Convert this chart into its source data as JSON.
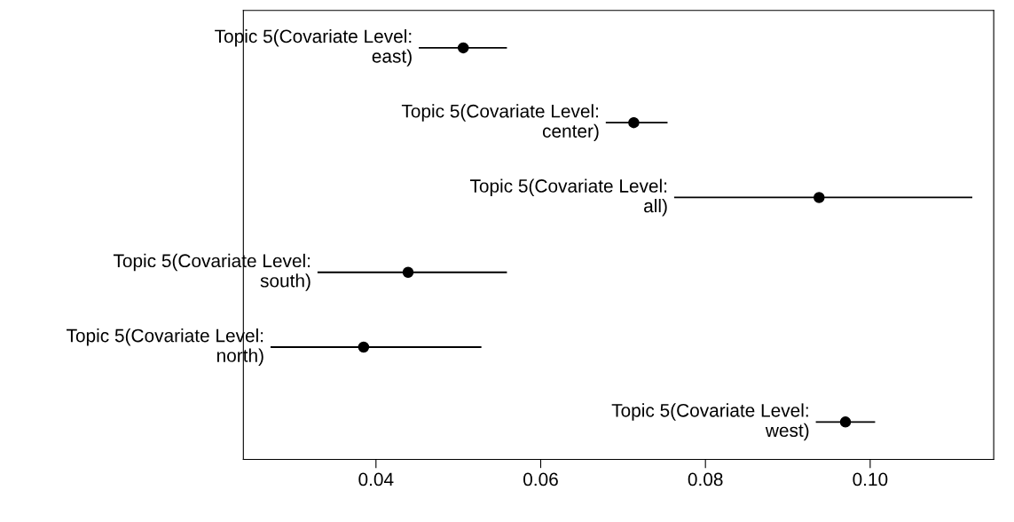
{
  "chart_data": {
    "type": "scatter",
    "orientation": "horizontal",
    "categories": [
      null,
      null,
      null,
      null,
      null,
      null
    ],
    "values": [
      0.0506,
      0.0713,
      0.0938,
      0.0439,
      0.0385,
      0.097
    ],
    "errors": [
      [
        0.0452,
        0.0559
      ],
      [
        0.0679,
        0.0754
      ],
      [
        0.0762,
        0.1124
      ],
      [
        0.0329,
        0.0559
      ],
      [
        0.0272,
        0.0528
      ],
      [
        0.0934,
        0.1006
      ]
    ],
    "annotations": [
      "Topic 5(Covariate Level:\neast)",
      "Topic 5(Covariate Level:\ncenter)",
      "Topic 5(Covariate Level:\nall)",
      "Topic 5(Covariate Level:\nsouth)",
      "Topic 5(Covariate Level:\nnorth)",
      "Topic 5(Covariate Level:\nwest)"
    ],
    "color": "#000000",
    "marker": "circle",
    "xlim": [
      0.0239,
      0.115
    ],
    "xticks": [
      {
        "value": 0.04,
        "label": "0.04"
      },
      {
        "value": 0.06,
        "label": "0.06"
      },
      {
        "value": 0.08,
        "label": "0.08"
      },
      {
        "value": 0.1,
        "label": "0.10"
      }
    ],
    "tick_labels": "x",
    "grid": false,
    "legend": false
  }
}
